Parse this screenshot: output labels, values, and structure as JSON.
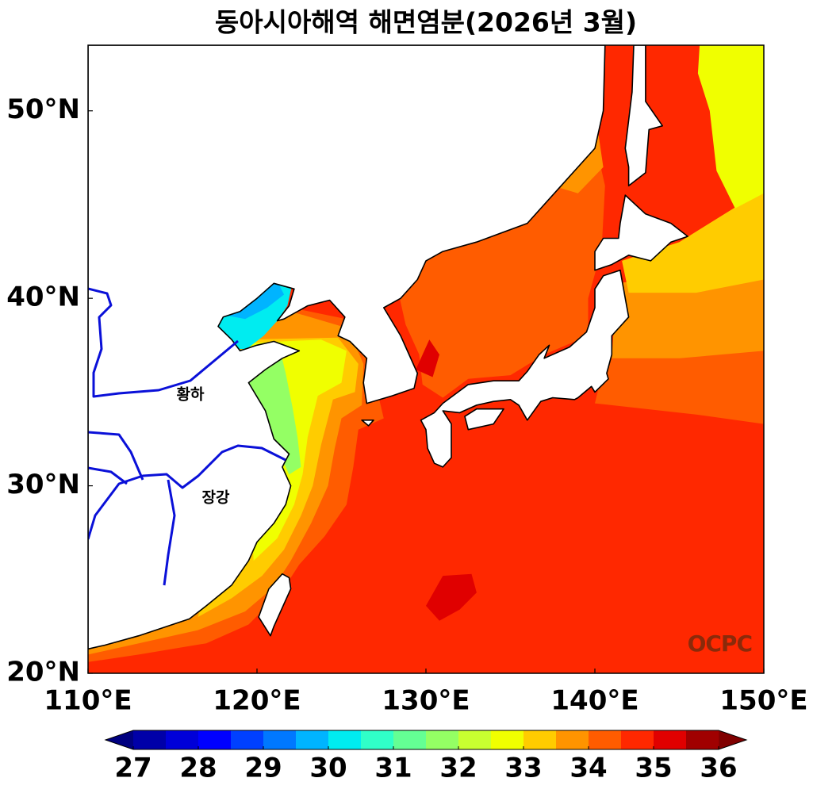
{
  "title": "동아시아해역 해면염분(2026년 3월)",
  "map": {
    "lonlim": [
      110,
      150
    ],
    "latlim": [
      20,
      53.5
    ],
    "lon_ticks": [
      {
        "value": 110,
        "label": "110°E"
      },
      {
        "value": 120,
        "label": "120°E"
      },
      {
        "value": 130,
        "label": "130°E"
      },
      {
        "value": 140,
        "label": "140°E"
      },
      {
        "value": 150,
        "label": "150°E"
      }
    ],
    "lat_ticks": [
      {
        "value": 20,
        "label": "20°N"
      },
      {
        "value": 30,
        "label": "30°N"
      },
      {
        "value": 40,
        "label": "40°N"
      },
      {
        "value": 50,
        "label": "50°N"
      }
    ],
    "labels": [
      "황하",
      "장강"
    ],
    "logo": "OCPC"
  },
  "colorbar": {
    "levels": [
      27,
      27.5,
      28,
      28.5,
      29,
      29.5,
      30,
      30.5,
      31,
      31.5,
      32,
      32.5,
      33,
      33.5,
      34,
      34.5,
      35,
      35.5,
      36
    ],
    "ticks": [
      27,
      28,
      29,
      30,
      31,
      32,
      33,
      34,
      35,
      36
    ],
    "colors": [
      "#000080",
      "#0000a8",
      "#0000d8",
      "#0000ff",
      "#0040ff",
      "#0078ff",
      "#00b4ff",
      "#00ecf0",
      "#30ffc8",
      "#64ff94",
      "#94ff64",
      "#c8ff30",
      "#f0ff00",
      "#ffcc00",
      "#ff9400",
      "#ff5c00",
      "#ff2800",
      "#e00000",
      "#a00000",
      "#800000"
    ],
    "extend": "both"
  }
}
